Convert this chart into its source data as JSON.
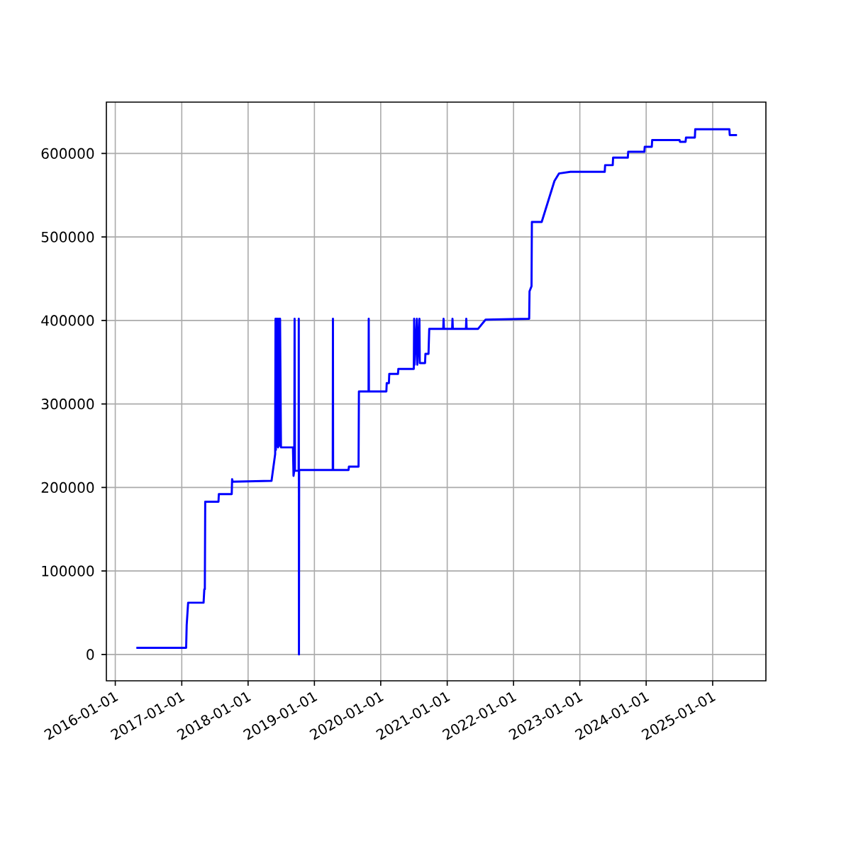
{
  "chart_data": {
    "type": "line",
    "grid": true,
    "xlim": [
      "2015-11-13",
      "2025-10-21"
    ],
    "ylim": [
      -31500,
      661500
    ],
    "xticks": [
      "2016-01-01",
      "2017-01-01",
      "2018-01-01",
      "2019-01-01",
      "2020-01-01",
      "2021-01-01",
      "2022-01-01",
      "2023-01-01",
      "2024-01-01",
      "2025-01-01"
    ],
    "yticks": [
      0,
      100000,
      200000,
      300000,
      400000,
      500000,
      600000
    ],
    "series": [
      {
        "color": "#0000ff",
        "x": [
          "2016-04-26",
          "2017-01-25",
          "2017-01-28",
          "2017-02-05",
          "2017-05-01",
          "2017-05-05",
          "2017-05-08",
          "2017-05-10",
          "2017-07-22",
          "2017-07-24",
          "2017-10-03",
          "2017-10-05",
          "2017-10-08",
          "2018-05-10",
          "2018-05-30",
          "2018-06-01",
          "2018-06-03",
          "2018-06-06",
          "2018-06-09",
          "2018-06-12",
          "2018-06-15",
          "2018-06-19",
          "2018-06-22",
          "2018-06-26",
          "2018-07-01",
          "2018-09-05",
          "2018-09-08",
          "2018-09-12",
          "2018-09-14",
          "2018-09-16",
          "2018-10-06",
          "2018-10-07",
          "2018-10-08",
          "2018-10-09",
          "2019-04-12",
          "2019-04-13",
          "2019-04-14",
          "2019-07-08",
          "2019-07-10",
          "2019-09-01",
          "2019-09-03",
          "2019-10-26",
          "2019-10-27",
          "2019-10-28",
          "2020-02-01",
          "2020-02-03",
          "2020-02-15",
          "2020-02-17",
          "2020-04-05",
          "2020-04-07",
          "2020-07-01",
          "2020-07-03",
          "2020-07-05",
          "2020-07-18",
          "2020-07-20",
          "2020-08-01",
          "2020-08-03",
          "2020-09-01",
          "2020-09-03",
          "2020-09-20",
          "2020-09-24",
          "2020-12-10",
          "2020-12-12",
          "2020-12-14",
          "2021-01-28",
          "2021-01-30",
          "2021-02-01",
          "2021-04-14",
          "2021-04-16",
          "2021-04-18",
          "2021-06-20",
          "2021-07-31",
          "2022-03-28",
          "2022-03-30",
          "2022-04-10",
          "2022-04-12",
          "2022-06-05",
          "2022-08-14",
          "2022-09-08",
          "2022-11-10",
          "2023-05-18",
          "2023-05-20",
          "2023-07-01",
          "2023-07-03",
          "2023-09-22",
          "2023-09-24",
          "2023-12-22",
          "2023-12-24",
          "2024-02-01",
          "2024-02-03",
          "2024-07-03",
          "2024-07-05",
          "2024-08-05",
          "2024-08-07",
          "2024-09-25",
          "2024-09-27",
          "2025-04-03",
          "2025-04-05",
          "2025-05-15"
        ],
        "values": [
          8000,
          8000,
          35000,
          62000,
          62000,
          78000,
          78000,
          183000,
          183000,
          192000,
          192000,
          210000,
          207000,
          208000,
          240000,
          402000,
          245000,
          402000,
          250000,
          402000,
          248000,
          402000,
          250000,
          402000,
          248000,
          248000,
          214000,
          220000,
          402000,
          220000,
          220000,
          402000,
          0,
          221000,
          221000,
          402000,
          221000,
          221000,
          225000,
          225000,
          315000,
          315000,
          402000,
          315000,
          315000,
          325000,
          325000,
          336000,
          336000,
          342000,
          342000,
          402000,
          347000,
          402000,
          347000,
          402000,
          349000,
          349000,
          360000,
          360000,
          390000,
          390000,
          402000,
          390000,
          390000,
          402000,
          390000,
          390000,
          402000,
          390000,
          390000,
          401000,
          402000,
          435000,
          441000,
          518000,
          518000,
          567000,
          576000,
          578000,
          578000,
          586000,
          586000,
          595000,
          595000,
          602000,
          602000,
          608000,
          608000,
          616000,
          616000,
          614000,
          614000,
          619000,
          619000,
          629000,
          629000,
          622000,
          622000
        ]
      }
    ]
  }
}
